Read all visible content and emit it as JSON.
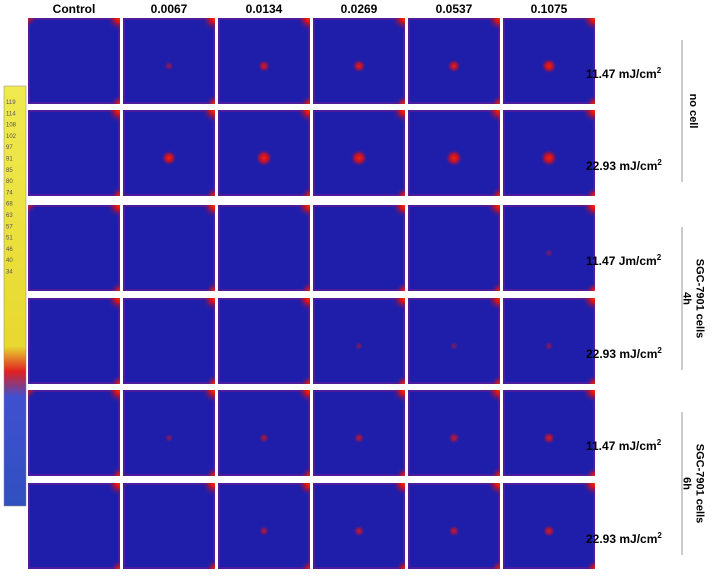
{
  "columns": [
    "Control",
    "0.0067",
    "0.0134",
    "0.0269",
    "0.0537",
    "0.1075"
  ],
  "rows": [
    {
      "dose": "11.47 mJ/cm",
      "sup": "2"
    },
    {
      "dose": "22.93 mJ/cm",
      "sup": "2"
    },
    {
      "dose": "11.47 Jm/cm",
      "sup": "2"
    },
    {
      "dose": "22.93 mJ/cm",
      "sup": "2"
    },
    {
      "dose": "11.47 mJ/cm",
      "sup": "2"
    },
    {
      "dose": "22.93 mJ/cm",
      "sup": "2"
    }
  ],
  "groups": [
    {
      "lines": [
        "no cell"
      ]
    },
    {
      "lines": [
        "4h",
        "SGC-7901 cells"
      ]
    },
    {
      "lines": [
        "6h",
        "SGC-7901 cells"
      ]
    }
  ],
  "colorbar": {
    "ticks": [
      "119",
      "114",
      "108",
      "102",
      "97",
      "91",
      "85",
      "80",
      "74",
      "68",
      "63",
      "57",
      "51",
      "46",
      "40",
      "34"
    ]
  }
}
